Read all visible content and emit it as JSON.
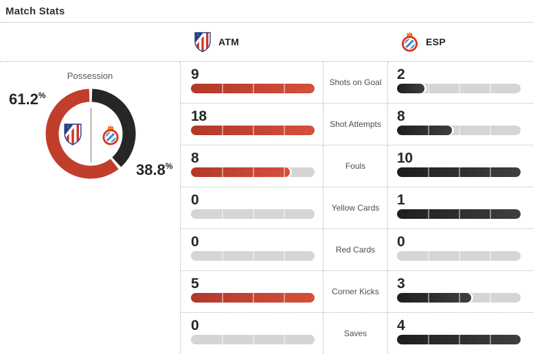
{
  "title": "Match Stats",
  "header": {
    "home": {
      "code": "ATM"
    },
    "away": {
      "code": "ESP"
    }
  },
  "possession": {
    "label": "Possession",
    "home": {
      "value": "61.2",
      "suffix": "%"
    },
    "away": {
      "value": "38.8",
      "suffix": "%"
    }
  },
  "stats": [
    {
      "label": "Shots on Goal",
      "home": 9,
      "away": 2
    },
    {
      "label": "Shot Attempts",
      "home": 18,
      "away": 8
    },
    {
      "label": "Fouls",
      "home": 8,
      "away": 10
    },
    {
      "label": "Yellow Cards",
      "home": 0,
      "away": 1
    },
    {
      "label": "Red Cards",
      "home": 0,
      "away": 0
    },
    {
      "label": "Corner Kicks",
      "home": 5,
      "away": 3
    },
    {
      "label": "Saves",
      "home": 0,
      "away": 4
    }
  ],
  "colors": {
    "home_accent": "#c23e2c",
    "away_accent": "#262626",
    "track": "#d5d5d5"
  },
  "chart_data": [
    {
      "type": "pie",
      "style": "donut",
      "title": "Possession",
      "labels": [
        "ATM",
        "ESP"
      ],
      "values": [
        61.2,
        38.8
      ],
      "unit": "%",
      "colors": [
        "#c23e2c",
        "#262626"
      ],
      "annotations": [
        "61.2%",
        "38.8%"
      ],
      "legend_position": "center-icons"
    },
    {
      "type": "bar",
      "orientation": "horizontal",
      "title": "Match Stats",
      "categories": [
        "Shots on Goal",
        "Shot Attempts",
        "Fouls",
        "Yellow Cards",
        "Red Cards",
        "Corner Kicks",
        "Saves"
      ],
      "series": [
        {
          "name": "ATM",
          "values": [
            9,
            18,
            8,
            0,
            0,
            5,
            0
          ],
          "color": "#c23e2c"
        },
        {
          "name": "ESP",
          "values": [
            2,
            8,
            10,
            1,
            0,
            3,
            4
          ],
          "color": "#262626"
        }
      ],
      "note": "fill fraction = value / max(home, away) per category; 4-segment rounded track"
    }
  ]
}
